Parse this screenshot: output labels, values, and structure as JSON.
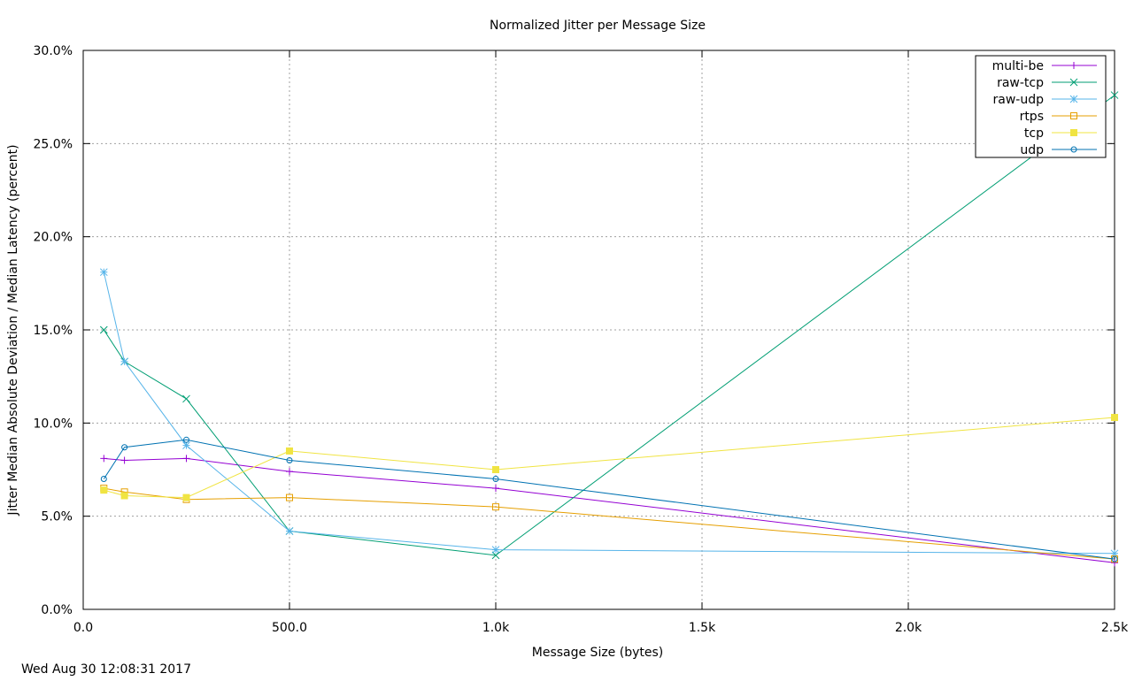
{
  "chart_data": {
    "type": "line",
    "title": "Normalized Jitter per Message Size",
    "xlabel": "Message Size (bytes)",
    "ylabel": "Jitter Median Absolute Deviation / Median Latency (percent)",
    "xlim": [
      0,
      2500
    ],
    "ylim": [
      0,
      30
    ],
    "xticks": [
      0,
      500,
      1000,
      1500,
      2000,
      2500
    ],
    "xtick_labels": [
      "0.0",
      "500.0",
      "1.0k",
      "1.5k",
      "2.0k",
      "2.5k"
    ],
    "yticks": [
      0,
      5,
      10,
      15,
      20,
      25,
      30
    ],
    "ytick_labels": [
      "0.0%",
      "5.0%",
      "10.0%",
      "15.0%",
      "20.0%",
      "25.0%",
      "30.0%"
    ],
    "grid": true,
    "legend_position": "top-right",
    "x": [
      50,
      100,
      250,
      500,
      1000,
      2500
    ],
    "series": [
      {
        "name": "multi-be",
        "color": "#9400d3",
        "marker": "plus",
        "values": [
          8.1,
          8.0,
          8.1,
          7.4,
          6.5,
          2.5
        ]
      },
      {
        "name": "raw-tcp",
        "color": "#009e73",
        "marker": "x",
        "values": [
          15.0,
          13.3,
          11.3,
          4.2,
          2.9,
          27.6
        ]
      },
      {
        "name": "raw-udp",
        "color": "#56b4e9",
        "marker": "star",
        "values": [
          18.1,
          13.3,
          8.8,
          4.2,
          3.2,
          3.0
        ]
      },
      {
        "name": "rtps",
        "color": "#e69f00",
        "marker": "square-open",
        "values": [
          6.5,
          6.3,
          5.9,
          6.0,
          5.5,
          2.7
        ]
      },
      {
        "name": "tcp",
        "color": "#f0e442",
        "marker": "square-filled",
        "values": [
          6.4,
          6.1,
          6.0,
          8.5,
          7.5,
          10.3
        ]
      },
      {
        "name": "udp",
        "color": "#0072b2",
        "marker": "circle-open",
        "values": [
          7.0,
          8.7,
          9.1,
          8.0,
          7.0,
          2.7
        ]
      }
    ]
  },
  "footer": {
    "timestamp": "Wed Aug 30 12:08:31 2017"
  }
}
